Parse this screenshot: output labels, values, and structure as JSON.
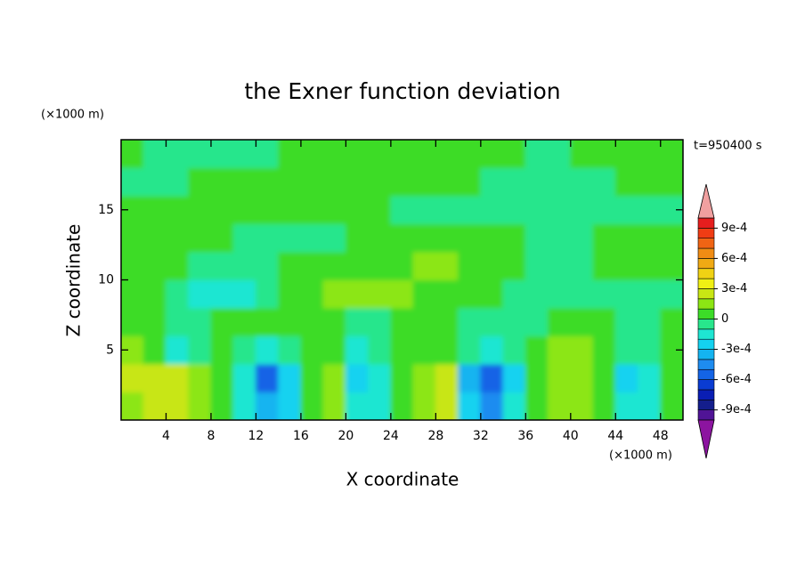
{
  "chart_data": {
    "type": "contour",
    "title": "the Exner function deviation",
    "x_label": "X coordinate",
    "y_label": "Z coordinate",
    "x_unit": "(×1000 m)",
    "y_unit": "(×1000 m)",
    "time_label": "t=950400 s",
    "xlim": [
      0,
      50
    ],
    "ylim": [
      0,
      20
    ],
    "xticks": [
      4,
      8,
      12,
      16,
      20,
      24,
      28,
      32,
      36,
      40,
      44,
      48
    ],
    "yticks": [
      5,
      10,
      15
    ],
    "x": [
      1,
      3,
      5,
      7,
      9,
      11,
      13,
      15,
      17,
      19,
      21,
      23,
      25,
      27,
      29,
      31,
      33,
      35,
      37,
      39,
      41,
      43,
      45,
      47,
      49
    ],
    "y": [
      1,
      3,
      5,
      7,
      9,
      11,
      13,
      15,
      17,
      19
    ],
    "z": [
      [
        0.00015,
        0.0002,
        0.00025,
        0.00015,
        5e-05,
        -0.00015,
        -0.0004,
        -0.00025,
        5e-05,
        0.00015,
        -0.0002,
        -0.00015,
        5e-05,
        0.00015,
        0.0002,
        -0.0003,
        -0.0005,
        -0.0002,
        5e-05,
        0.00015,
        0.00015,
        5e-05,
        -0.0002,
        -0.00015,
        5e-05
      ],
      [
        0.0002,
        0.00025,
        0.0002,
        0.0001,
        5e-05,
        -0.0002,
        -0.00055,
        -0.0003,
        5e-05,
        0.0001,
        -0.00025,
        -0.0002,
        5e-05,
        0.00015,
        0.0002,
        -0.00035,
        -0.0006,
        -0.00025,
        5e-05,
        0.00015,
        0.00015,
        5e-05,
        -0.00025,
        -0.00015,
        5e-05
      ],
      [
        0.0001,
        5e-05,
        -0.00015,
        -0.0001,
        5e-05,
        -0.0001,
        -0.0002,
        -0.0001,
        5e-05,
        5e-05,
        -0.00015,
        -0.0001,
        5e-05,
        5e-05,
        5e-05,
        -0.0001,
        -0.00015,
        -5e-05,
        5e-05,
        0.00015,
        0.00015,
        5e-05,
        -0.0001,
        -5e-05,
        5e-05
      ],
      [
        5e-05,
        5e-05,
        -5e-05,
        -5e-05,
        5e-05,
        5e-05,
        5e-05,
        5e-05,
        5e-05,
        5e-05,
        -5e-05,
        -5e-05,
        5e-05,
        5e-05,
        5e-05,
        -5e-05,
        -5e-05,
        -5e-05,
        -5e-05,
        5e-05,
        5e-05,
        5e-05,
        -5e-05,
        -5e-05,
        5e-05
      ],
      [
        5e-05,
        5e-05,
        -5e-05,
        -0.00015,
        -0.00015,
        -0.00015,
        -5e-05,
        5e-05,
        5e-05,
        0.00015,
        0.00015,
        0.00015,
        0.00015,
        5e-05,
        5e-05,
        5e-05,
        5e-05,
        -5e-05,
        -5e-05,
        -5e-05,
        -5e-05,
        -5e-05,
        -5e-05,
        -5e-05,
        -5e-05
      ],
      [
        5e-05,
        5e-05,
        5e-05,
        -5e-05,
        -5e-05,
        -5e-05,
        -5e-05,
        5e-05,
        5e-05,
        5e-05,
        5e-05,
        5e-05,
        5e-05,
        0.00015,
        0.00015,
        5e-05,
        5e-05,
        5e-05,
        -5e-05,
        -5e-05,
        -5e-05,
        5e-05,
        5e-05,
        5e-05,
        5e-05
      ],
      [
        5e-05,
        5e-05,
        5e-05,
        5e-05,
        5e-05,
        -5e-05,
        -5e-05,
        -5e-05,
        -5e-05,
        -5e-05,
        5e-05,
        5e-05,
        5e-05,
        5e-05,
        5e-05,
        5e-05,
        5e-05,
        5e-05,
        -5e-05,
        -5e-05,
        -5e-05,
        5e-05,
        5e-05,
        5e-05,
        5e-05
      ],
      [
        5e-05,
        5e-05,
        5e-05,
        5e-05,
        5e-05,
        5e-05,
        5e-05,
        5e-05,
        5e-05,
        5e-05,
        5e-05,
        5e-05,
        -5e-05,
        -5e-05,
        -5e-05,
        -5e-05,
        -5e-05,
        -5e-05,
        -5e-05,
        -5e-05,
        -5e-05,
        -5e-05,
        -5e-05,
        -5e-05,
        -5e-05
      ],
      [
        -5e-05,
        -5e-05,
        -5e-05,
        5e-05,
        5e-05,
        5e-05,
        5e-05,
        5e-05,
        5e-05,
        5e-05,
        5e-05,
        5e-05,
        5e-05,
        5e-05,
        5e-05,
        5e-05,
        -5e-05,
        -5e-05,
        -5e-05,
        -5e-05,
        -5e-05,
        -5e-05,
        5e-05,
        5e-05,
        5e-05
      ],
      [
        5e-05,
        -5e-05,
        -5e-05,
        -5e-05,
        -5e-05,
        -5e-05,
        -5e-05,
        5e-05,
        5e-05,
        5e-05,
        5e-05,
        5e-05,
        5e-05,
        5e-05,
        5e-05,
        5e-05,
        5e-05,
        5e-05,
        -5e-05,
        -5e-05,
        5e-05,
        5e-05,
        5e-05,
        5e-05,
        5e-05
      ]
    ],
    "colorbar": {
      "levels": [
        -0.001,
        -0.0009,
        -0.0008,
        -0.0007,
        -0.0006,
        -0.0005,
        -0.0004,
        -0.0003,
        -0.0002,
        -0.0001,
        0,
        0.0001,
        0.0002,
        0.0003,
        0.0004,
        0.0005,
        0.0006,
        0.0007,
        0.0008,
        0.0009,
        0.001
      ],
      "colors": [
        "#501496",
        "#141e8c",
        "#0a1eb4",
        "#0a3cd2",
        "#1464e6",
        "#1e8cf0",
        "#14b4f0",
        "#14d2f0",
        "#1ee6d2",
        "#28e68c",
        "#3cdc28",
        "#8ce614",
        "#c8e614",
        "#f0f014",
        "#f0d214",
        "#f0aa14",
        "#f08c14",
        "#f06414",
        "#f03c14",
        "#e61e1e"
      ],
      "under_color": "#8c14a0",
      "over_color": "#f0a0a0",
      "ticks": [
        {
          "value": 0.0009,
          "label": "9e-4"
        },
        {
          "value": 0.0006,
          "label": "6e-4"
        },
        {
          "value": 0.0003,
          "label": "3e-4"
        },
        0,
        {
          "value": -0.0003,
          "label": "-3e-4"
        },
        {
          "value": -0.0006,
          "label": "-6e-4"
        },
        {
          "value": -0.0009,
          "label": "-9e-4"
        }
      ]
    }
  }
}
